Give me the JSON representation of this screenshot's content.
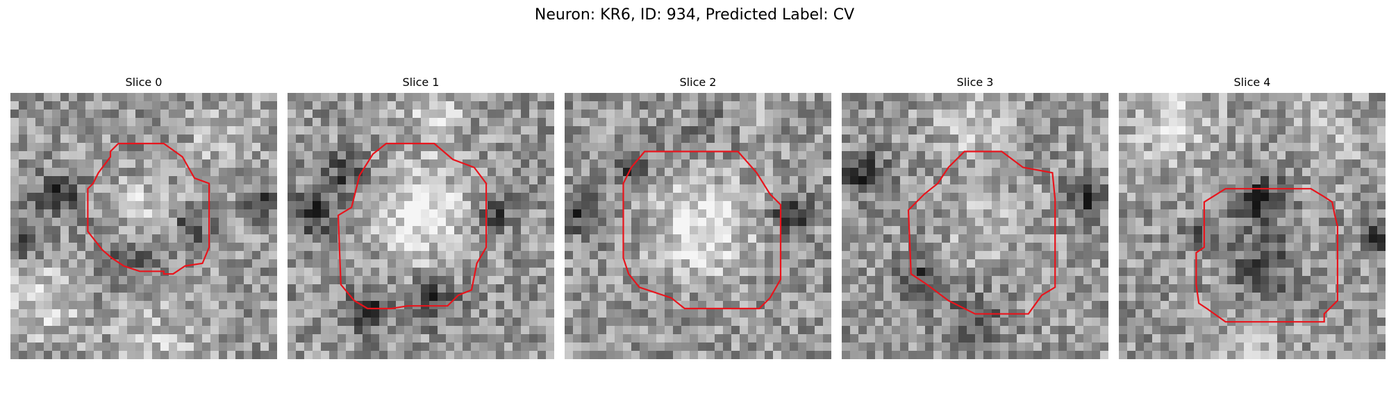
{
  "figure": {
    "title": "Neuron: KR6, ID: 934, Predicted Label: CV",
    "panels": [
      {
        "title": "Slice 0",
        "seed": 11,
        "contour": [
          [
            0.405,
            0.19
          ],
          [
            0.575,
            0.19
          ],
          [
            0.645,
            0.24
          ],
          [
            0.69,
            0.32
          ],
          [
            0.745,
            0.34
          ],
          [
            0.745,
            0.58
          ],
          [
            0.72,
            0.64
          ],
          [
            0.655,
            0.65
          ],
          [
            0.61,
            0.68
          ],
          [
            0.575,
            0.68
          ],
          [
            0.575,
            0.67
          ],
          [
            0.485,
            0.67
          ],
          [
            0.425,
            0.65
          ],
          [
            0.38,
            0.62
          ],
          [
            0.345,
            0.59
          ],
          [
            0.29,
            0.52
          ],
          [
            0.29,
            0.36
          ],
          [
            0.31,
            0.34
          ],
          [
            0.33,
            0.3
          ],
          [
            0.375,
            0.24
          ],
          [
            0.375,
            0.22
          ],
          [
            0.405,
            0.19
          ]
        ],
        "dark_blobs": [
          [
            0.18,
            0.38,
            0.08,
            0.35
          ],
          [
            0.05,
            0.55,
            0.08,
            0.3
          ],
          [
            0.95,
            0.42,
            0.06,
            0.3
          ],
          [
            0.43,
            0.62,
            0.12,
            0.25
          ],
          [
            0.68,
            0.5,
            0.06,
            0.4
          ]
        ],
        "bright_blobs": [
          [
            0.5,
            0.45,
            0.12,
            0.25
          ],
          [
            0.12,
            0.78,
            0.14,
            0.25
          ],
          [
            0.55,
            0.92,
            0.18,
            0.15
          ],
          [
            0.8,
            0.15,
            0.12,
            0.2
          ]
        ]
      },
      {
        "title": "Slice 1",
        "seed": 23,
        "contour": [
          [
            0.37,
            0.19
          ],
          [
            0.55,
            0.19
          ],
          [
            0.62,
            0.25
          ],
          [
            0.7,
            0.28
          ],
          [
            0.745,
            0.34
          ],
          [
            0.745,
            0.58
          ],
          [
            0.71,
            0.64
          ],
          [
            0.69,
            0.74
          ],
          [
            0.64,
            0.76
          ],
          [
            0.6,
            0.8
          ],
          [
            0.5,
            0.8
          ],
          [
            0.45,
            0.8
          ],
          [
            0.39,
            0.81
          ],
          [
            0.3,
            0.81
          ],
          [
            0.25,
            0.78
          ],
          [
            0.2,
            0.72
          ],
          [
            0.19,
            0.46
          ],
          [
            0.24,
            0.43
          ],
          [
            0.27,
            0.31
          ],
          [
            0.32,
            0.23
          ],
          [
            0.37,
            0.19
          ]
        ],
        "dark_blobs": [
          [
            0.1,
            0.45,
            0.08,
            0.4
          ],
          [
            0.3,
            0.82,
            0.08,
            0.35
          ],
          [
            0.55,
            0.78,
            0.08,
            0.35
          ],
          [
            0.78,
            0.45,
            0.06,
            0.35
          ],
          [
            0.22,
            0.3,
            0.08,
            0.3
          ]
        ],
        "bright_blobs": [
          [
            0.5,
            0.45,
            0.18,
            0.35
          ],
          [
            0.55,
            0.08,
            0.12,
            0.2
          ]
        ]
      },
      {
        "title": "Slice 2",
        "seed": 37,
        "contour": [
          [
            0.3,
            0.22
          ],
          [
            0.65,
            0.22
          ],
          [
            0.72,
            0.3
          ],
          [
            0.77,
            0.38
          ],
          [
            0.81,
            0.42
          ],
          [
            0.81,
            0.7
          ],
          [
            0.77,
            0.77
          ],
          [
            0.73,
            0.81
          ],
          [
            0.45,
            0.81
          ],
          [
            0.4,
            0.77
          ],
          [
            0.28,
            0.73
          ],
          [
            0.24,
            0.68
          ],
          [
            0.22,
            0.62
          ],
          [
            0.22,
            0.34
          ],
          [
            0.25,
            0.28
          ],
          [
            0.3,
            0.22
          ]
        ],
        "dark_blobs": [
          [
            0.07,
            0.45,
            0.08,
            0.35
          ],
          [
            0.85,
            0.45,
            0.07,
            0.4
          ],
          [
            0.25,
            0.3,
            0.06,
            0.3
          ],
          [
            0.5,
            0.07,
            0.15,
            0.2
          ]
        ],
        "bright_blobs": [
          [
            0.52,
            0.5,
            0.18,
            0.35
          ],
          [
            0.45,
            0.05,
            0.1,
            0.2
          ],
          [
            0.7,
            0.05,
            0.1,
            0.15
          ]
        ]
      },
      {
        "title": "Slice 3",
        "seed": 53,
        "contour": [
          [
            0.46,
            0.22
          ],
          [
            0.6,
            0.22
          ],
          [
            0.68,
            0.28
          ],
          [
            0.79,
            0.3
          ],
          [
            0.8,
            0.4
          ],
          [
            0.8,
            0.73
          ],
          [
            0.75,
            0.76
          ],
          [
            0.7,
            0.83
          ],
          [
            0.5,
            0.83
          ],
          [
            0.4,
            0.78
          ],
          [
            0.32,
            0.72
          ],
          [
            0.26,
            0.68
          ],
          [
            0.25,
            0.44
          ],
          [
            0.31,
            0.38
          ],
          [
            0.36,
            0.34
          ],
          [
            0.4,
            0.28
          ],
          [
            0.46,
            0.22
          ]
        ],
        "dark_blobs": [
          [
            0.08,
            0.3,
            0.08,
            0.4
          ],
          [
            0.92,
            0.4,
            0.07,
            0.4
          ],
          [
            0.5,
            0.85,
            0.1,
            0.25
          ],
          [
            0.3,
            0.7,
            0.08,
            0.3
          ]
        ],
        "bright_blobs": [
          [
            0.5,
            0.1,
            0.15,
            0.2
          ],
          [
            0.55,
            0.5,
            0.16,
            0.15
          ]
        ]
      },
      {
        "title": "Slice 4",
        "seed": 71,
        "contour": [
          [
            0.4,
            0.36
          ],
          [
            0.72,
            0.36
          ],
          [
            0.77,
            0.39
          ],
          [
            0.8,
            0.41
          ],
          [
            0.81,
            0.46
          ],
          [
            0.82,
            0.5
          ],
          [
            0.82,
            0.78
          ],
          [
            0.77,
            0.83
          ],
          [
            0.77,
            0.86
          ],
          [
            0.4,
            0.86
          ],
          [
            0.33,
            0.81
          ],
          [
            0.3,
            0.79
          ],
          [
            0.29,
            0.72
          ],
          [
            0.29,
            0.6
          ],
          [
            0.32,
            0.58
          ],
          [
            0.32,
            0.47
          ],
          [
            0.32,
            0.41
          ],
          [
            0.4,
            0.36
          ]
        ],
        "dark_blobs": [
          [
            0.52,
            0.4,
            0.1,
            0.35
          ],
          [
            0.55,
            0.65,
            0.12,
            0.25
          ],
          [
            0.96,
            0.55,
            0.05,
            0.4
          ],
          [
            0.3,
            0.53,
            0.05,
            0.3
          ]
        ],
        "bright_blobs": [
          [
            0.2,
            0.12,
            0.18,
            0.2
          ],
          [
            0.8,
            0.15,
            0.15,
            0.15
          ],
          [
            0.5,
            0.95,
            0.15,
            0.1
          ]
        ]
      }
    ],
    "contour_color": "#e8141c"
  }
}
